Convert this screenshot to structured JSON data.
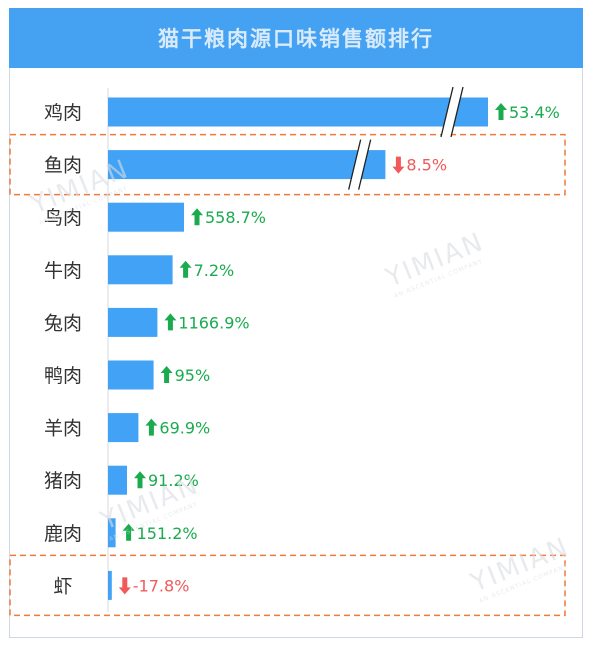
{
  "chart_data": {
    "type": "bar",
    "orientation": "horizontal",
    "title": "猫干粮肉源口味销售额排行",
    "categories": [
      "鸡肉",
      "鱼肉",
      "鸟肉",
      "牛肉",
      "兔肉",
      "鸭肉",
      "羊肉",
      "猪肉",
      "鹿肉",
      "虾"
    ],
    "relative_bar_length": [
      1.0,
      0.73,
      0.2,
      0.17,
      0.13,
      0.12,
      0.08,
      0.05,
      0.02,
      0.01
    ],
    "axis_break": [
      true,
      true,
      false,
      false,
      false,
      false,
      false,
      false,
      false,
      false
    ],
    "growth_labels": [
      "53.4%",
      "8.5%",
      "558.7%",
      "7.2%",
      "1166.9%",
      "95%",
      "69.9%",
      "91.2%",
      "151.2%",
      "-17.8%"
    ],
    "growth_direction": [
      "up",
      "down",
      "up",
      "up",
      "up",
      "up",
      "up",
      "up",
      "up",
      "down"
    ],
    "highlighted": [
      "鱼肉",
      "虾"
    ],
    "colors": {
      "bar": "#42a2f5",
      "up": "#1aab4f",
      "down": "#f05a5a",
      "highlight_border": "#f07a3c",
      "header_bg": "#45a2f2",
      "header_text": "#d9ebfb"
    }
  },
  "watermark": {
    "brand": "YIMIAN",
    "tagline": "AN ASCENTIAL COMPANY"
  }
}
